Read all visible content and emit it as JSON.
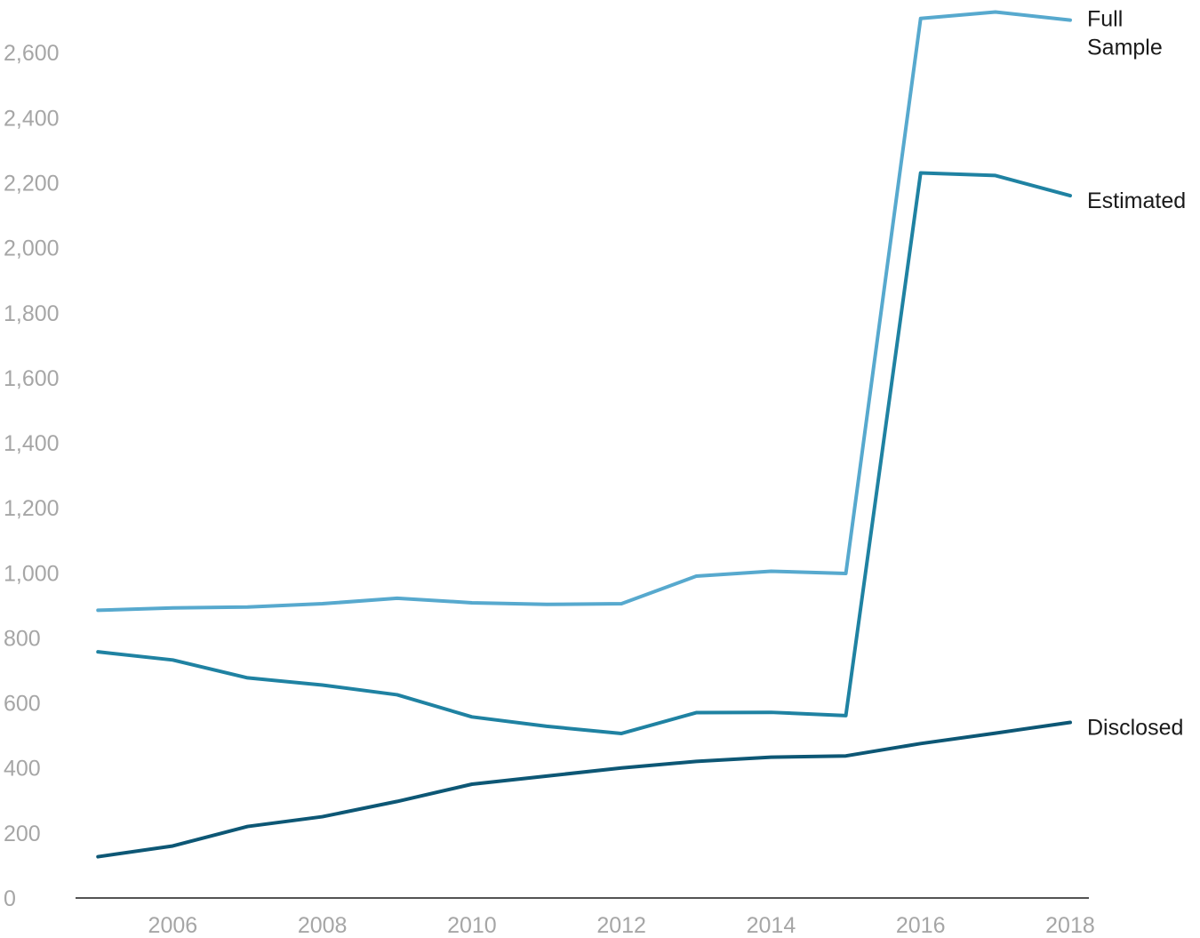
{
  "chart_data": {
    "type": "line",
    "title": "",
    "xlabel": "",
    "ylabel": "",
    "x": [
      2005,
      2006,
      2007,
      2008,
      2009,
      2010,
      2011,
      2012,
      2013,
      2014,
      2015,
      2016,
      2017,
      2018
    ],
    "xlim": [
      2004.7,
      2018.25
    ],
    "ylim": [
      0,
      2740
    ],
    "x_ticks": [
      2006,
      2008,
      2010,
      2012,
      2014,
      2016,
      2018
    ],
    "x_tick_labels": [
      "2006",
      "2008",
      "2010",
      "2012",
      "2014",
      "2016",
      "2018"
    ],
    "y_ticks": [
      0,
      200,
      400,
      600,
      800,
      1000,
      1200,
      1400,
      1600,
      1800,
      2000,
      2200,
      2400,
      2600
    ],
    "y_tick_labels": [
      "0",
      "200",
      "400",
      "600",
      "800",
      "1,000",
      "1,200",
      "1,400",
      "1,600",
      "1,800",
      "2,000",
      "2,200",
      "2,400",
      "2,600"
    ],
    "grid": false,
    "legend": "direct labels at right end of lines",
    "series": [
      {
        "name": "Full Sample",
        "label_lines": [
          "Full",
          "Sample"
        ],
        "color": "#57a9ce",
        "values": [
          885,
          892,
          895,
          905,
          922,
          908,
          903,
          905,
          990,
          1005,
          998,
          2705,
          2725,
          2700
        ]
      },
      {
        "name": "Estimated",
        "label_lines": [
          "Estimated"
        ],
        "color": "#1f82a2",
        "values": [
          757,
          732,
          677,
          655,
          625,
          557,
          528,
          506,
          570,
          571,
          561,
          2230,
          2222,
          2160
        ]
      },
      {
        "name": "Disclosed",
        "label_lines": [
          "Disclosed"
        ],
        "color": "#0d5775",
        "values": [
          127,
          160,
          220,
          250,
          297,
          350,
          375,
          400,
          420,
          433,
          437,
          475,
          507,
          540
        ]
      }
    ]
  }
}
